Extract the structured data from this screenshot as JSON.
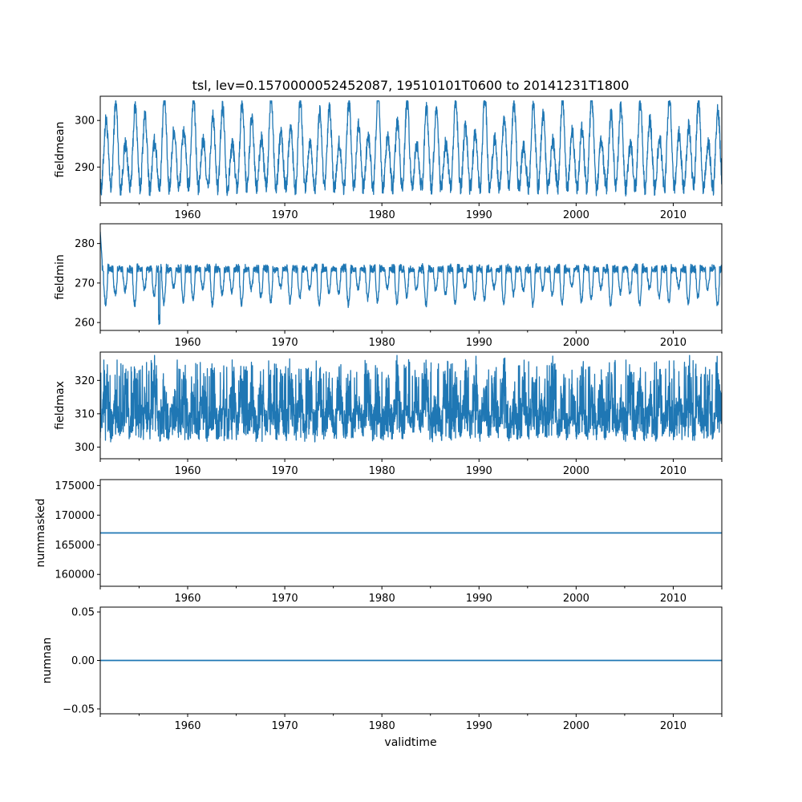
{
  "chart_data": {
    "title": "tsl, lev=0.1570000052452087, 19510101T0600 to 20141231T1800",
    "xlabel": "validtime",
    "type": "line",
    "x_range": [
      "1951-01-01T06:00",
      "2014-12-31T18:00"
    ],
    "x_tick_labels": [
      "1960",
      "1970",
      "1980",
      "1990",
      "2000",
      "2010"
    ],
    "series_color": "#1f77b4",
    "panels": [
      {
        "ylabel": "fieldmean",
        "ylim": [
          282.3,
          305.2
        ],
        "y_ticks": [
          290,
          300
        ],
        "y_tick_labels": [
          "290",
          "300"
        ],
        "seasonal_cycle": {
          "typical_min": 285.5,
          "typical_max": 302.5,
          "overall_min": 283.5,
          "overall_max": 304.2
        }
      },
      {
        "ylabel": "fieldmin",
        "ylim": [
          258,
          285
        ],
        "y_ticks": [
          260,
          270,
          280
        ],
        "y_tick_labels": [
          "260",
          "270",
          "280"
        ],
        "seasonal_cycle": {
          "baseline": 273.15,
          "typical_min": 265.5,
          "typical_max": 274.5,
          "overall_min": 259.0,
          "overall_max": 283.0
        }
      },
      {
        "ylabel": "fieldmax",
        "ylim": [
          296.5,
          328.5
        ],
        "y_ticks": [
          300,
          310,
          320
        ],
        "y_tick_labels": [
          "300",
          "310",
          "320"
        ],
        "seasonal_cycle": {
          "typical_min": 299.5,
          "typical_max": 323.0,
          "overall_min": 298.0,
          "overall_max": 327.5
        }
      },
      {
        "ylabel": "nummasked",
        "ylim": [
          158000,
          176000
        ],
        "y_ticks": [
          160000,
          165000,
          170000,
          175000
        ],
        "y_tick_labels": [
          "160000",
          "165000",
          "170000",
          "175000"
        ],
        "constant_value": 167000
      },
      {
        "ylabel": "numnan",
        "ylim": [
          -0.055,
          0.055
        ],
        "y_ticks": [
          -0.05,
          0.0,
          0.05
        ],
        "y_tick_labels": [
          "−0.05",
          "0.00",
          "0.05"
        ],
        "constant_value": 0.0
      }
    ]
  }
}
